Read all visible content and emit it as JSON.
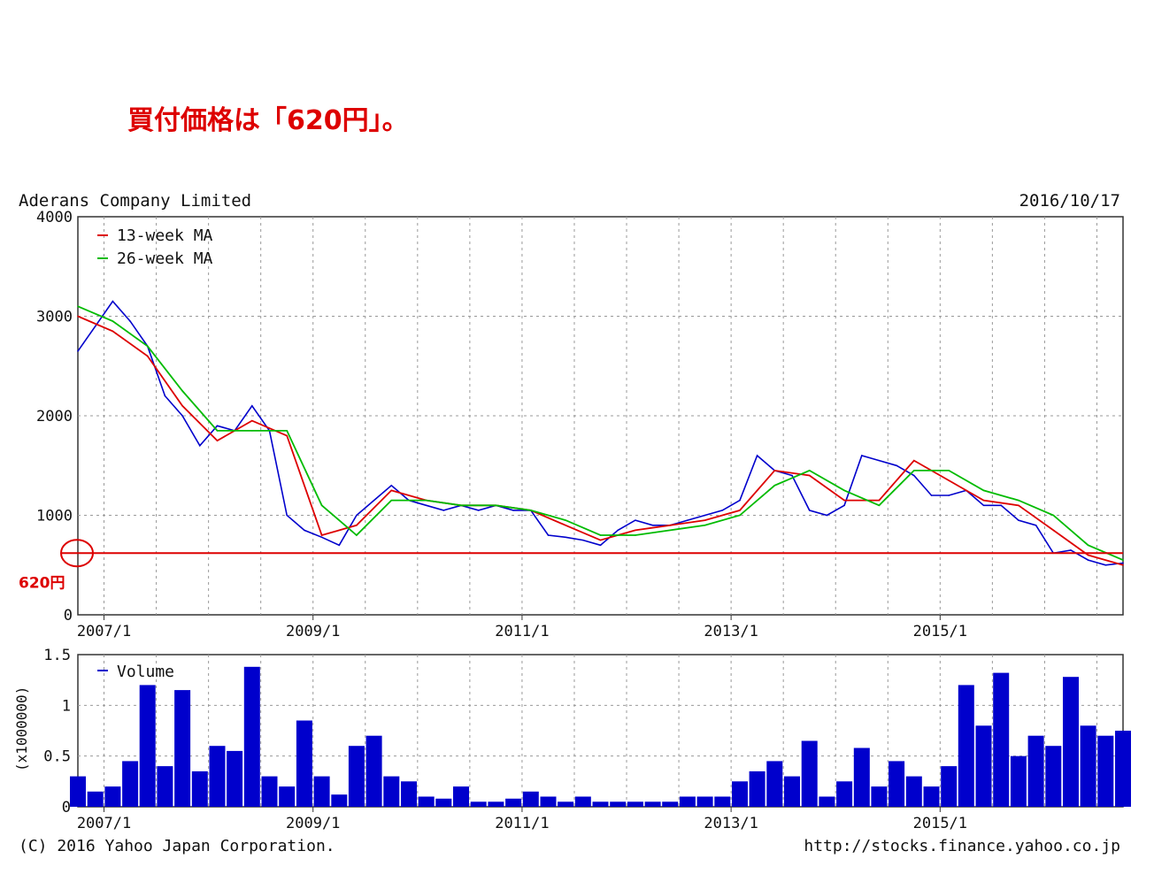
{
  "headline": "買付価格は「620円」。",
  "chart_data": [
    {
      "type": "line",
      "title": "Aderans Company Limited",
      "date": "2016/10/17",
      "x_ticks": [
        "2007/1",
        "2009/1",
        "2011/1",
        "2013/1",
        "2015/1"
      ],
      "y_ticks": [
        "0",
        "1000",
        "2000",
        "3000",
        "4000"
      ],
      "ylim": [
        0,
        4000
      ],
      "xlim": [
        "2006/10",
        "2016/10"
      ],
      "grid": true,
      "legend_position": "top-left",
      "colors": {
        "price": "#0000cc",
        "ma13": "#dd0000",
        "ma26": "#00bb00",
        "annotation": "#dd0000"
      },
      "annotation": {
        "label": "620円",
        "value": 620
      },
      "series": [
        {
          "name": "",
          "key": "price",
          "x": [
            "2006/10",
            "2006/12",
            "2007/2",
            "2007/4",
            "2007/6",
            "2007/8",
            "2007/10",
            "2007/12",
            "2008/2",
            "2008/4",
            "2008/6",
            "2008/8",
            "2008/10",
            "2008/12",
            "2009/2",
            "2009/4",
            "2009/6",
            "2009/8",
            "2009/10",
            "2009/12",
            "2010/2",
            "2010/4",
            "2010/6",
            "2010/8",
            "2010/10",
            "2010/12",
            "2011/2",
            "2011/4",
            "2011/6",
            "2011/8",
            "2011/10",
            "2011/12",
            "2012/2",
            "2012/4",
            "2012/6",
            "2012/8",
            "2012/10",
            "2012/12",
            "2013/2",
            "2013/4",
            "2013/6",
            "2013/8",
            "2013/10",
            "2013/12",
            "2014/2",
            "2014/4",
            "2014/6",
            "2014/8",
            "2014/10",
            "2014/12",
            "2015/2",
            "2015/4",
            "2015/6",
            "2015/8",
            "2015/10",
            "2015/12",
            "2016/2",
            "2016/4",
            "2016/6",
            "2016/8",
            "2016/10"
          ],
          "values": [
            2650,
            2900,
            3150,
            2950,
            2700,
            2200,
            2000,
            1700,
            1900,
            1850,
            2100,
            1850,
            1000,
            850,
            780,
            700,
            1000,
            1150,
            1300,
            1150,
            1100,
            1050,
            1100,
            1050,
            1100,
            1050,
            1050,
            800,
            780,
            750,
            700,
            850,
            950,
            900,
            900,
            950,
            1000,
            1050,
            1150,
            1600,
            1450,
            1400,
            1050,
            1000,
            1100,
            1600,
            1550,
            1500,
            1400,
            1200,
            1200,
            1250,
            1100,
            1100,
            950,
            900,
            620,
            650,
            550,
            500,
            520
          ]
        },
        {
          "name": "13-week MA",
          "key": "ma13",
          "x": [
            "2006/10",
            "2007/2",
            "2007/6",
            "2007/10",
            "2008/2",
            "2008/6",
            "2008/10",
            "2009/2",
            "2009/6",
            "2009/10",
            "2010/2",
            "2010/6",
            "2010/10",
            "2011/2",
            "2011/6",
            "2011/10",
            "2012/2",
            "2012/6",
            "2012/10",
            "2013/2",
            "2013/6",
            "2013/10",
            "2014/2",
            "2014/6",
            "2014/10",
            "2015/2",
            "2015/6",
            "2015/10",
            "2016/2",
            "2016/6",
            "2016/10"
          ],
          "values": [
            3000,
            2850,
            2600,
            2100,
            1750,
            1950,
            1800,
            800,
            900,
            1250,
            1150,
            1100,
            1100,
            1050,
            900,
            750,
            850,
            900,
            950,
            1050,
            1450,
            1400,
            1150,
            1150,
            1550,
            1350,
            1150,
            1100,
            850,
            600,
            500
          ]
        },
        {
          "name": "26-week MA",
          "key": "ma26",
          "x": [
            "2006/10",
            "2007/2",
            "2007/6",
            "2007/10",
            "2008/2",
            "2008/6",
            "2008/10",
            "2009/2",
            "2009/6",
            "2009/10",
            "2010/2",
            "2010/6",
            "2010/10",
            "2011/2",
            "2011/6",
            "2011/10",
            "2012/2",
            "2012/6",
            "2012/10",
            "2013/2",
            "2013/6",
            "2013/10",
            "2014/2",
            "2014/6",
            "2014/10",
            "2015/2",
            "2015/6",
            "2015/10",
            "2016/2",
            "2016/6",
            "2016/10"
          ],
          "values": [
            3100,
            2950,
            2700,
            2250,
            1850,
            1850,
            1850,
            1100,
            800,
            1150,
            1150,
            1100,
            1100,
            1050,
            950,
            800,
            800,
            850,
            900,
            1000,
            1300,
            1450,
            1250,
            1100,
            1450,
            1450,
            1250,
            1150,
            1000,
            700,
            550
          ]
        }
      ]
    },
    {
      "type": "bar",
      "title": "",
      "ylabel": "(x1000000)",
      "y_ticks": [
        "0",
        "0.5",
        "1",
        "1.5"
      ],
      "ylim": [
        0,
        1.5
      ],
      "x_ticks": [
        "2007/1",
        "2009/1",
        "2011/1",
        "2013/1",
        "2015/1"
      ],
      "grid": true,
      "legend_position": "top-left",
      "series": [
        {
          "name": "Volume",
          "x": [
            "2006/10",
            "2006/12",
            "2007/2",
            "2007/4",
            "2007/6",
            "2007/8",
            "2007/10",
            "2007/12",
            "2008/2",
            "2008/4",
            "2008/6",
            "2008/8",
            "2008/10",
            "2008/12",
            "2009/2",
            "2009/4",
            "2009/6",
            "2009/8",
            "2009/10",
            "2009/12",
            "2010/2",
            "2010/4",
            "2010/6",
            "2010/8",
            "2010/10",
            "2010/12",
            "2011/2",
            "2011/4",
            "2011/6",
            "2011/8",
            "2011/10",
            "2011/12",
            "2012/2",
            "2012/4",
            "2012/6",
            "2012/8",
            "2012/10",
            "2012/12",
            "2013/2",
            "2013/4",
            "2013/6",
            "2013/8",
            "2013/10",
            "2013/12",
            "2014/2",
            "2014/4",
            "2014/6",
            "2014/8",
            "2014/10",
            "2014/12",
            "2015/2",
            "2015/4",
            "2015/6",
            "2015/8",
            "2015/10",
            "2015/12",
            "2016/2",
            "2016/4",
            "2016/6",
            "2016/8",
            "2016/10"
          ],
          "values": [
            0.3,
            0.15,
            0.2,
            0.45,
            1.2,
            0.4,
            1.15,
            0.35,
            0.6,
            0.55,
            1.38,
            0.3,
            0.2,
            0.85,
            0.3,
            0.12,
            0.6,
            0.7,
            0.3,
            0.25,
            0.1,
            0.08,
            0.2,
            0.05,
            0.05,
            0.08,
            0.15,
            0.1,
            0.05,
            0.1,
            0.05,
            0.05,
            0.05,
            0.05,
            0.05,
            0.1,
            0.1,
            0.1,
            0.25,
            0.35,
            0.45,
            0.3,
            0.65,
            0.1,
            0.25,
            0.58,
            0.2,
            0.45,
            0.3,
            0.2,
            0.4,
            1.2,
            0.8,
            1.32,
            0.5,
            0.7,
            0.6,
            1.28,
            0.8,
            0.7,
            0.75
          ]
        }
      ]
    }
  ],
  "footer": {
    "copyright": "(C) 2016 Yahoo Japan Corporation.",
    "url": "http://stocks.finance.yahoo.co.jp"
  }
}
